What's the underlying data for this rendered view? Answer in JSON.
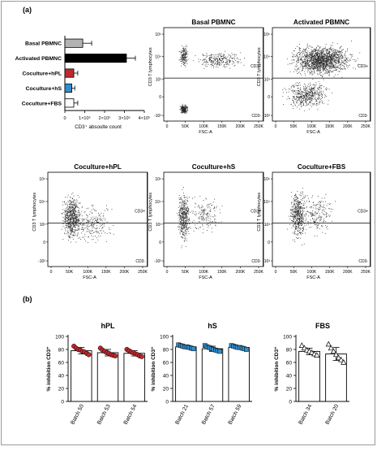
{
  "panel_labels": {
    "a": "(a)",
    "b": "(b)"
  },
  "colors": {
    "basal": "#b3b3b3",
    "activated": "#000000",
    "hpl": "#c0282d",
    "hs": "#2e8fd0",
    "fbs": "#ffffff",
    "dots": "#222222"
  },
  "chart_data": [
    {
      "type": "bar",
      "orientation": "horizontal",
      "title": "",
      "categories": [
        "Basal PBMNC",
        "Activated PBMNC",
        "Coculture+hPL",
        "Coculture+hS",
        "Coculture+FBS"
      ],
      "values": [
        90000,
        310000,
        45000,
        35000,
        45000
      ],
      "errors": [
        45000,
        45000,
        20000,
        15000,
        20000
      ],
      "xlabel": "CD3⁺ absoulte count",
      "xlim": [
        0,
        400000
      ],
      "xticks": [
        0,
        100000,
        200000,
        300000,
        400000
      ],
      "xtick_labels": [
        "0",
        "1×10⁵",
        "2×10⁵",
        "3×10⁵",
        "4×10⁵"
      ]
    },
    {
      "type": "scatter",
      "title": "Basal PBMNC",
      "xlabel": "FSC-A",
      "ylabel": "CD3 T lymphocytes",
      "xtick_labels": [
        "0",
        "50K",
        "100K",
        "150K",
        "200K",
        "250K"
      ],
      "ytick_labels": [
        "-10³",
        "0",
        "10³",
        "10⁴",
        "10⁵"
      ],
      "gate_labels": {
        "upper": "CD3+",
        "lower": "CD3-"
      },
      "density": "medium"
    },
    {
      "type": "scatter",
      "title": "Activated PBMNC",
      "xlabel": "FSC-A",
      "ylabel": "CD3 T lymphocytes",
      "xtick_labels": [
        "0",
        "50K",
        "100K",
        "150K",
        "200K",
        "250K"
      ],
      "ytick_labels": [
        "-10³",
        "0",
        "10³",
        "10⁴",
        "10⁵"
      ],
      "gate_labels": {
        "upper": "CD3+",
        "lower": "CD3-"
      },
      "density": "high"
    },
    {
      "type": "scatter",
      "title": "Coculture+hPL",
      "xlabel": "FSC-A",
      "ylabel": "CD3 T lymphocytes",
      "xtick_labels": [
        "0",
        "50K",
        "100K",
        "150K",
        "200K",
        "250K"
      ],
      "ytick_labels": [
        "-10³",
        "0",
        "10³",
        "10⁴",
        "10⁵"
      ],
      "gate_labels": {
        "upper": "CD3+",
        "lower": "CD3-"
      },
      "density": "medium"
    },
    {
      "type": "scatter",
      "title": "Coculture+hS",
      "xlabel": "FSC-A",
      "ylabel": "CD3 T lymphocytes",
      "xtick_labels": [
        "0",
        "50K",
        "100K",
        "150K",
        "200K",
        "250K"
      ],
      "ytick_labels": [
        "-10³",
        "0",
        "10³",
        "10⁴",
        "10⁵"
      ],
      "gate_labels": {
        "upper": "CD3+",
        "lower": "CD3-"
      },
      "density": "medium"
    },
    {
      "type": "scatter",
      "title": "Coculture+FBS",
      "xlabel": "FSC-A",
      "ylabel": "CD3 T lymphocytes",
      "xtick_labels": [
        "0",
        "50K",
        "100K",
        "150K",
        "200K",
        "250K"
      ],
      "ytick_labels": [
        "-10³",
        "0",
        "10³",
        "10⁴",
        "10⁵"
      ],
      "gate_labels": {
        "upper": "CD3+",
        "lower": "CD3-"
      },
      "density": "medium"
    },
    {
      "type": "bar",
      "title": "hPL",
      "ylabel": "% inhibition CD3⁺",
      "ylim": [
        0,
        100
      ],
      "yticks": [
        0,
        20,
        40,
        60,
        80,
        100
      ],
      "categories": [
        "Batch 50",
        "Batch 53",
        "Batch 54"
      ],
      "values": [
        78,
        75,
        74
      ],
      "errors": [
        5,
        5,
        4
      ],
      "points": [
        [
          85,
          82,
          80,
          79,
          77,
          76,
          74,
          72
        ],
        [
          82,
          79,
          77,
          75,
          74,
          72,
          71,
          70
        ],
        [
          80,
          78,
          76,
          75,
          73,
          72,
          70,
          69
        ]
      ],
      "marker": "circle"
    },
    {
      "type": "bar",
      "title": "hS",
      "ylabel": "% inhibition CD3⁺",
      "ylim": [
        0,
        100
      ],
      "yticks": [
        0,
        20,
        40,
        60,
        80,
        100
      ],
      "categories": [
        "Batch 21",
        "Batch 57",
        "Batch 59"
      ],
      "values": [
        84,
        81,
        83
      ],
      "errors": [
        2,
        4,
        2
      ],
      "points": [
        [
          87,
          86,
          85,
          84,
          84,
          83,
          82,
          81
        ],
        [
          86,
          84,
          83,
          81,
          80,
          79,
          78,
          77
        ],
        [
          86,
          85,
          84,
          83,
          83,
          82,
          81,
          80
        ]
      ],
      "marker": "square"
    },
    {
      "type": "bar",
      "title": "FBS",
      "ylabel": "% inhibition CD3⁺",
      "ylim": [
        0,
        100
      ],
      "yticks": [
        0,
        20,
        40,
        60,
        80,
        100
      ],
      "categories": [
        "Batch 34",
        "Batch 20"
      ],
      "values": [
        77,
        73
      ],
      "errors": [
        5,
        10
      ],
      "points": [
        [
          86,
          82,
          79,
          77,
          75,
          73,
          71
        ],
        [
          88,
          82,
          77,
          72,
          67,
          64,
          60
        ]
      ],
      "marker": "triangle"
    }
  ]
}
